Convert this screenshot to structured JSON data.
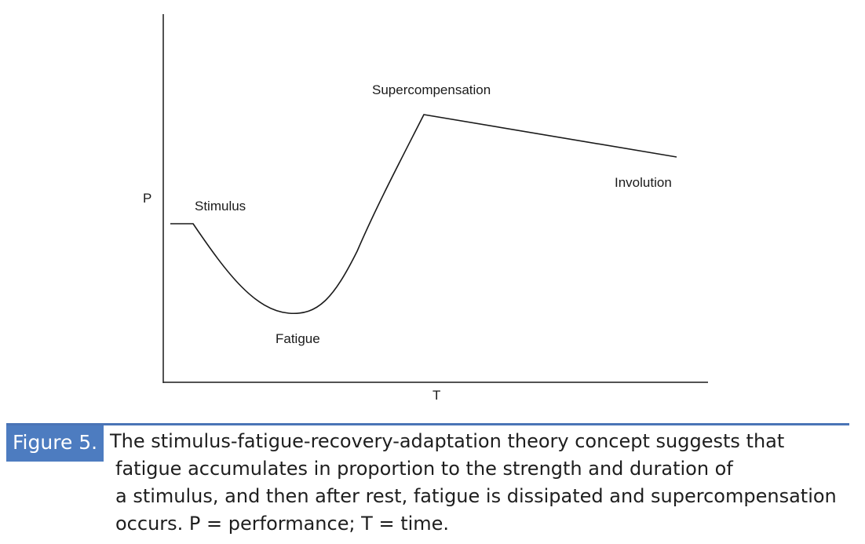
{
  "diagram": {
    "axes": {
      "y_label": "P",
      "x_label": "T"
    },
    "annotations": {
      "stimulus": "Stimulus",
      "fatigue": "Fatigue",
      "supercompensation": "Supercompensation",
      "involution": "Involution"
    }
  },
  "caption": {
    "tag": "Figure 5.",
    "lines": [
      "The stimulus-fatigue-recovery-adaptation theory concept suggests that",
      "fatigue accumulates in proportion to the strength and duration of",
      "a stimulus, and then after rest, fatigue is dissipated and supercompensation",
      "occurs. P = performance; T = time."
    ]
  },
  "colors": {
    "accent": "#4d7cc0",
    "rule": "#4a74b6",
    "curve": "#1a1a1a"
  }
}
